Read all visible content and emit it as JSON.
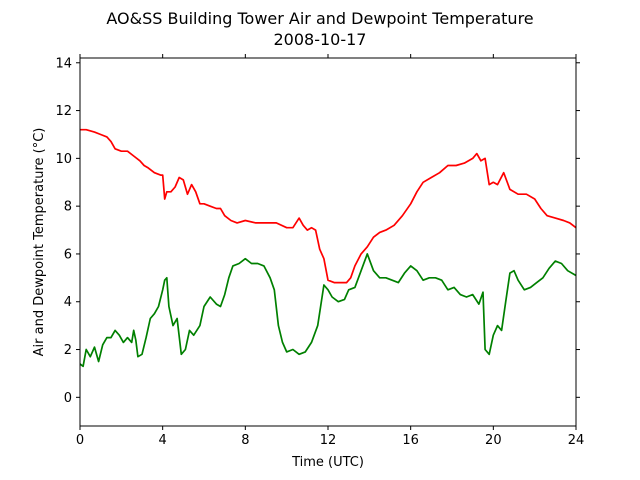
{
  "chart_data": {
    "type": "line",
    "title": "AO&SS Building Tower Air and Dewpoint Temperature",
    "subtitle": "2008-10-17",
    "xlabel": "Time (UTC)",
    "ylabel": "Air and Dewpoint Temperature (°C)",
    "xlim": [
      0,
      24
    ],
    "ylim": [
      -1.2,
      14.2
    ],
    "xticks": [
      0,
      4,
      8,
      12,
      16,
      20,
      24
    ],
    "yticks": [
      0,
      2,
      4,
      6,
      8,
      10,
      12,
      14
    ],
    "grid": false,
    "series": [
      {
        "color": "#ff0000",
        "x": [
          0,
          0.3,
          0.7,
          1.0,
          1.3,
          1.5,
          1.7,
          2.0,
          2.3,
          2.6,
          2.9,
          3.1,
          3.3,
          3.6,
          3.9,
          4.0,
          4.1,
          4.2,
          4.4,
          4.6,
          4.8,
          5.0,
          5.2,
          5.4,
          5.6,
          5.8,
          6.0,
          6.3,
          6.6,
          6.8,
          7.0,
          7.3,
          7.6,
          8.0,
          8.5,
          9.0,
          9.5,
          10.0,
          10.3,
          10.6,
          10.8,
          11.0,
          11.2,
          11.4,
          11.6,
          11.8,
          12.0,
          12.3,
          12.6,
          12.9,
          13.1,
          13.3,
          13.6,
          13.9,
          14.2,
          14.5,
          14.8,
          15.2,
          15.6,
          16.0,
          16.3,
          16.6,
          17.0,
          17.4,
          17.8,
          18.2,
          18.6,
          19.0,
          19.2,
          19.4,
          19.6,
          19.8,
          20.0,
          20.2,
          20.5,
          20.8,
          21.2,
          21.6,
          22.0,
          22.3,
          22.6,
          23.0,
          23.4,
          23.7,
          24.0
        ],
        "y": [
          11.2,
          11.2,
          11.1,
          11.0,
          10.9,
          10.7,
          10.4,
          10.3,
          10.3,
          10.1,
          9.9,
          9.7,
          9.6,
          9.4,
          9.3,
          9.3,
          8.3,
          8.6,
          8.6,
          8.8,
          9.2,
          9.1,
          8.5,
          8.9,
          8.6,
          8.1,
          8.1,
          8.0,
          7.9,
          7.9,
          7.6,
          7.4,
          7.3,
          7.4,
          7.3,
          7.3,
          7.3,
          7.1,
          7.1,
          7.5,
          7.2,
          7.0,
          7.1,
          7.0,
          6.2,
          5.8,
          4.9,
          4.8,
          4.8,
          4.8,
          5.0,
          5.5,
          6.0,
          6.3,
          6.7,
          6.9,
          7.0,
          7.2,
          7.6,
          8.1,
          8.6,
          9.0,
          9.2,
          9.4,
          9.7,
          9.7,
          9.8,
          10.0,
          10.2,
          9.9,
          10.0,
          8.9,
          9.0,
          8.9,
          9.4,
          8.7,
          8.5,
          8.5,
          8.3,
          7.9,
          7.6,
          7.5,
          7.4,
          7.3,
          7.1
        ]
      },
      {
        "color": "#008000",
        "x": [
          0,
          0.15,
          0.3,
          0.5,
          0.7,
          0.9,
          1.1,
          1.3,
          1.5,
          1.7,
          1.9,
          2.1,
          2.3,
          2.5,
          2.6,
          2.7,
          2.8,
          3.0,
          3.2,
          3.4,
          3.6,
          3.8,
          4.0,
          4.1,
          4.2,
          4.3,
          4.5,
          4.7,
          4.9,
          5.1,
          5.3,
          5.5,
          5.8,
          6.0,
          6.3,
          6.6,
          6.8,
          7.0,
          7.2,
          7.4,
          7.7,
          8.0,
          8.3,
          8.6,
          8.9,
          9.2,
          9.4,
          9.6,
          9.8,
          10.0,
          10.3,
          10.6,
          10.9,
          11.2,
          11.5,
          11.8,
          12.0,
          12.2,
          12.5,
          12.8,
          13.0,
          13.3,
          13.6,
          13.9,
          14.2,
          14.5,
          14.8,
          15.1,
          15.4,
          15.7,
          16.0,
          16.3,
          16.6,
          16.9,
          17.2,
          17.5,
          17.8,
          18.1,
          18.4,
          18.7,
          19.0,
          19.3,
          19.5,
          19.6,
          19.8,
          20.0,
          20.2,
          20.4,
          20.6,
          20.8,
          21.0,
          21.2,
          21.5,
          21.8,
          22.1,
          22.4,
          22.7,
          23.0,
          23.3,
          23.6,
          24.0
        ],
        "y": [
          1.4,
          1.3,
          2.0,
          1.7,
          2.1,
          1.5,
          2.2,
          2.5,
          2.5,
          2.8,
          2.6,
          2.3,
          2.5,
          2.3,
          2.8,
          2.4,
          1.7,
          1.8,
          2.5,
          3.3,
          3.5,
          3.8,
          4.5,
          4.9,
          5.0,
          3.8,
          3.0,
          3.3,
          1.8,
          2.0,
          2.8,
          2.6,
          3.0,
          3.8,
          4.2,
          3.9,
          3.8,
          4.3,
          5.0,
          5.5,
          5.6,
          5.8,
          5.6,
          5.6,
          5.5,
          5.0,
          4.5,
          3.0,
          2.3,
          1.9,
          2.0,
          1.8,
          1.9,
          2.3,
          3.0,
          4.7,
          4.5,
          4.2,
          4.0,
          4.1,
          4.5,
          4.6,
          5.3,
          6.0,
          5.3,
          5.0,
          5.0,
          4.9,
          4.8,
          5.2,
          5.5,
          5.3,
          4.9,
          5.0,
          5.0,
          4.9,
          4.5,
          4.6,
          4.3,
          4.2,
          4.3,
          3.9,
          4.4,
          2.0,
          1.8,
          2.6,
          3.0,
          2.8,
          4.0,
          5.2,
          5.3,
          4.9,
          4.5,
          4.6,
          4.8,
          5.0,
          5.4,
          5.7,
          5.6,
          5.3,
          5.1
        ]
      }
    ]
  }
}
